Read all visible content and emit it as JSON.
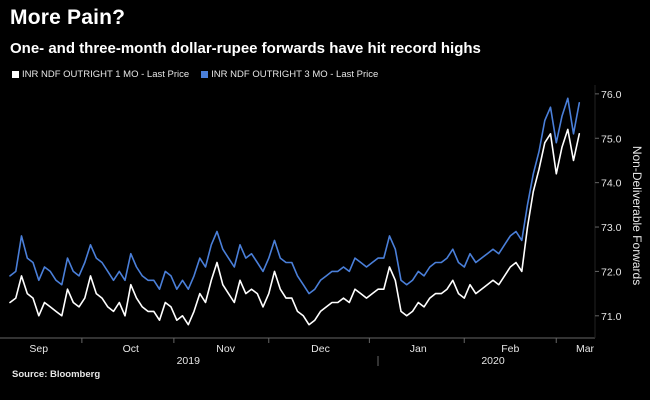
{
  "title": "More Pain?",
  "subtitle": "One- and three-month dollar-rupee forwards have hit record highs",
  "source": "Source: Bloomberg",
  "colors": {
    "series1": "#ffffff",
    "series2": "#4a7fd9",
    "background": "#000000",
    "axis": "#666666"
  },
  "chart_data": {
    "type": "line",
    "title": "More Pain?",
    "subtitle": "One- and three-month dollar-rupee forwards have hit record highs",
    "xlabel": "",
    "ylabel": "Non-Deliverable Forwards",
    "ylim": [
      70.5,
      76.2
    ],
    "yticks": [
      71.0,
      72.0,
      73.0,
      74.0,
      75.0,
      76.0
    ],
    "ytick_labels": [
      "71.0",
      "72.0",
      "73.0",
      "74.0",
      "75.0",
      "76.0"
    ],
    "xlim": [
      0,
      200
    ],
    "x_month_labels": [
      {
        "label": "Sep",
        "x": 10
      },
      {
        "label": "Oct",
        "x": 42
      },
      {
        "label": "Nov",
        "x": 75
      },
      {
        "label": "Dec",
        "x": 108
      },
      {
        "label": "Jan",
        "x": 142
      },
      {
        "label": "Feb",
        "x": 174
      },
      {
        "label": "Mar",
        "x": 200
      }
    ],
    "x_month_ticks": [
      25,
      57,
      90,
      125,
      158,
      190
    ],
    "x_year_labels": [
      {
        "label": "2019",
        "x": 62
      },
      {
        "label": "2020",
        "x": 168
      }
    ],
    "x_year_divider": 128,
    "legend": [
      "INR NDF OUTRIGHT 1 MO - Last Price",
      "INR NDF OUTRIGHT 3 MO - Last Price"
    ],
    "series": [
      {
        "name": "INR NDF OUTRIGHT 1 MO - Last Price",
        "x": [
          0,
          2,
          4,
          6,
          8,
          10,
          12,
          14,
          16,
          18,
          20,
          22,
          24,
          26,
          28,
          30,
          32,
          34,
          36,
          38,
          40,
          42,
          44,
          46,
          48,
          50,
          52,
          54,
          56,
          58,
          60,
          62,
          64,
          66,
          68,
          70,
          72,
          74,
          76,
          78,
          80,
          82,
          84,
          86,
          88,
          90,
          92,
          94,
          96,
          98,
          100,
          102,
          104,
          106,
          108,
          110,
          112,
          114,
          116,
          118,
          120,
          122,
          124,
          126,
          128,
          130,
          132,
          134,
          136,
          138,
          140,
          142,
          144,
          146,
          148,
          150,
          152,
          154,
          156,
          158,
          160,
          162,
          164,
          166,
          168,
          170,
          172,
          174,
          176,
          178,
          180,
          182,
          184,
          186,
          188,
          190,
          192,
          194,
          196,
          198
        ],
        "values": [
          71.3,
          71.4,
          71.9,
          71.5,
          71.4,
          71.0,
          71.3,
          71.2,
          71.1,
          71.0,
          71.6,
          71.3,
          71.2,
          71.4,
          71.9,
          71.5,
          71.4,
          71.2,
          71.1,
          71.3,
          71.0,
          71.7,
          71.4,
          71.2,
          71.1,
          71.1,
          70.9,
          71.3,
          71.2,
          70.9,
          71.0,
          70.8,
          71.1,
          71.5,
          71.3,
          71.8,
          72.2,
          71.7,
          71.5,
          71.3,
          71.8,
          71.5,
          71.6,
          71.5,
          71.2,
          71.5,
          72.0,
          71.6,
          71.4,
          71.4,
          71.1,
          71.0,
          70.8,
          70.9,
          71.1,
          71.2,
          71.3,
          71.3,
          71.4,
          71.3,
          71.6,
          71.5,
          71.4,
          71.5,
          71.6,
          71.6,
          72.1,
          71.8,
          71.1,
          71.0,
          71.1,
          71.3,
          71.2,
          71.4,
          71.5,
          71.5,
          71.6,
          71.8,
          71.5,
          71.4,
          71.7,
          71.5,
          71.6,
          71.7,
          71.8,
          71.7,
          71.9,
          72.1,
          72.2,
          72.0,
          73.0,
          73.8,
          74.3,
          74.9,
          75.1,
          74.2,
          74.8,
          75.2,
          74.5,
          75.1
        ]
      },
      {
        "name": "INR NDF OUTRIGHT 3 MO - Last Price",
        "x": [
          0,
          2,
          4,
          6,
          8,
          10,
          12,
          14,
          16,
          18,
          20,
          22,
          24,
          26,
          28,
          30,
          32,
          34,
          36,
          38,
          40,
          42,
          44,
          46,
          48,
          50,
          52,
          54,
          56,
          58,
          60,
          62,
          64,
          66,
          68,
          70,
          72,
          74,
          76,
          78,
          80,
          82,
          84,
          86,
          88,
          90,
          92,
          94,
          96,
          98,
          100,
          102,
          104,
          106,
          108,
          110,
          112,
          114,
          116,
          118,
          120,
          122,
          124,
          126,
          128,
          130,
          132,
          134,
          136,
          138,
          140,
          142,
          144,
          146,
          148,
          150,
          152,
          154,
          156,
          158,
          160,
          162,
          164,
          166,
          168,
          170,
          172,
          174,
          176,
          178,
          180,
          182,
          184,
          186,
          188,
          190,
          192,
          194,
          196,
          198
        ],
        "values": [
          71.9,
          72.0,
          72.8,
          72.3,
          72.2,
          71.8,
          72.1,
          72.0,
          71.8,
          71.7,
          72.3,
          72.0,
          71.9,
          72.2,
          72.6,
          72.3,
          72.2,
          72.0,
          71.8,
          72.0,
          71.8,
          72.4,
          72.1,
          71.9,
          71.8,
          71.8,
          71.6,
          72.0,
          71.9,
          71.6,
          71.8,
          71.6,
          71.9,
          72.3,
          72.1,
          72.6,
          72.9,
          72.5,
          72.3,
          72.1,
          72.6,
          72.3,
          72.4,
          72.2,
          72.0,
          72.3,
          72.7,
          72.3,
          72.2,
          72.2,
          71.9,
          71.7,
          71.5,
          71.6,
          71.8,
          71.9,
          72.0,
          72.0,
          72.1,
          72.0,
          72.3,
          72.2,
          72.1,
          72.2,
          72.3,
          72.3,
          72.8,
          72.5,
          71.8,
          71.7,
          71.8,
          72.0,
          71.9,
          72.1,
          72.2,
          72.2,
          72.3,
          72.5,
          72.2,
          72.1,
          72.4,
          72.2,
          72.3,
          72.4,
          72.5,
          72.4,
          72.6,
          72.8,
          72.9,
          72.7,
          73.5,
          74.2,
          74.7,
          75.4,
          75.7,
          74.9,
          75.5,
          75.9,
          75.1,
          75.8
        ]
      }
    ]
  }
}
